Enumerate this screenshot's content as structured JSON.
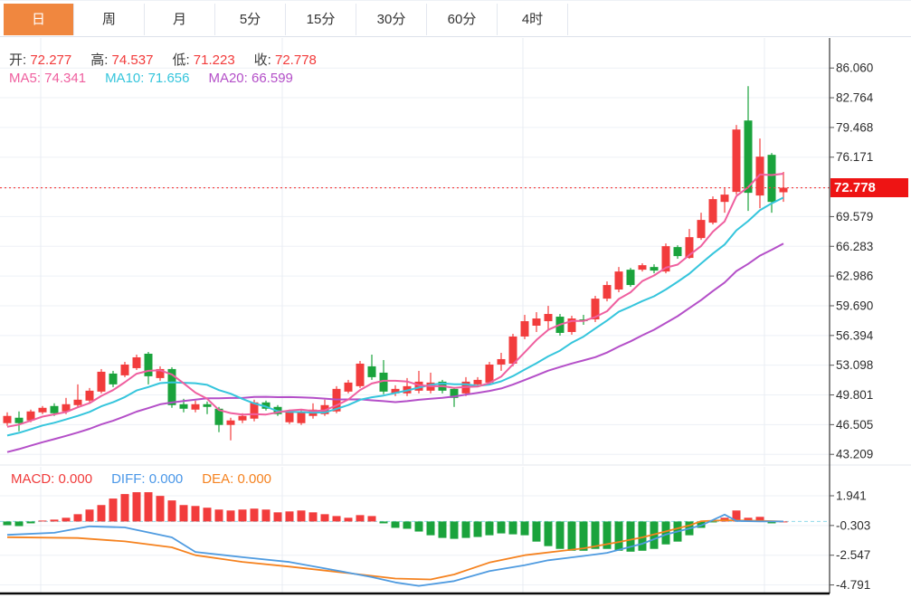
{
  "tabs": [
    {
      "label": "日",
      "active": true
    },
    {
      "label": "周",
      "active": false
    },
    {
      "label": "月",
      "active": false
    },
    {
      "label": "5分",
      "active": false
    },
    {
      "label": "15分",
      "active": false
    },
    {
      "label": "30分",
      "active": false
    },
    {
      "label": "60分",
      "active": false
    },
    {
      "label": "4时",
      "active": false
    }
  ],
  "legend": {
    "ohlc": [
      {
        "label": "开:",
        "value": "72.277"
      },
      {
        "label": "高:",
        "value": "74.537"
      },
      {
        "label": "低:",
        "value": "71.223"
      },
      {
        "label": "收:",
        "value": "72.778"
      }
    ],
    "ma": [
      {
        "label": "MA5:",
        "value": "74.341",
        "color": "#ef5f9f"
      },
      {
        "label": "MA10:",
        "value": "71.656",
        "color": "#35c5dc"
      },
      {
        "label": "MA20:",
        "value": "66.599",
        "color": "#b44fc8"
      }
    ],
    "macd": [
      {
        "label": "MACD:",
        "value": "0.000",
        "color": "#f03b3b"
      },
      {
        "label": "DIFF:",
        "value": "0.000",
        "color": "#4a97e8"
      },
      {
        "label": "DEA:",
        "value": "0.000",
        "color": "#f5821f"
      }
    ]
  },
  "price_axis": {
    "labels": [
      "86.060",
      "82.764",
      "79.468",
      "76.171",
      "72.778",
      "69.579",
      "66.283",
      "62.986",
      "59.690",
      "56.394",
      "53.098",
      "49.801",
      "46.505",
      "43.209"
    ],
    "values": [
      86.06,
      82.764,
      79.468,
      76.171,
      72.778,
      69.579,
      66.283,
      62.986,
      59.69,
      56.394,
      53.098,
      49.801,
      46.505,
      43.209
    ],
    "tag": "72.778"
  },
  "macd_axis": {
    "labels": [
      "1.941",
      "-0.303",
      "-2.547",
      "-4.791"
    ],
    "values": [
      1.941,
      -0.303,
      -2.547,
      -4.791
    ]
  },
  "chart_data": [
    {
      "type": "candlestick",
      "title": "",
      "up_color": "#f23c3c",
      "down_color": "#1aa33c",
      "ma_colors": {
        "ma5": "#ef5f9f",
        "ma10": "#35c5dc",
        "ma20": "#b44fc8"
      },
      "current_price": 72.778,
      "last_bar": {
        "open": 72.277,
        "high": 74.537,
        "low": 71.223,
        "close": 72.778
      },
      "ylim": [
        41.9,
        89.4
      ],
      "y_gridlines": [
        86.06,
        82.764,
        79.468,
        76.171,
        72.778,
        69.579,
        66.283,
        62.986,
        59.69,
        56.394,
        53.098,
        49.801,
        46.505,
        43.209
      ],
      "candles_ohlc": [
        [
          46.67,
          47.87,
          46.37,
          47.47
        ],
        [
          47.27,
          47.97,
          45.77,
          46.67
        ],
        [
          46.97,
          48.17,
          46.77,
          47.97
        ],
        [
          47.87,
          48.57,
          47.67,
          48.37
        ],
        [
          48.57,
          48.87,
          47.47,
          47.77
        ],
        [
          47.97,
          49.47,
          47.67,
          48.77
        ],
        [
          48.67,
          50.97,
          48.47,
          49.27
        ],
        [
          49.17,
          50.57,
          48.97,
          50.27
        ],
        [
          50.17,
          52.67,
          49.97,
          52.37
        ],
        [
          52.17,
          52.47,
          50.67,
          50.97
        ],
        [
          51.97,
          53.47,
          51.77,
          53.17
        ],
        [
          52.77,
          54.27,
          52.57,
          53.97
        ],
        [
          54.37,
          54.57,
          50.97,
          51.87
        ],
        [
          51.67,
          52.97,
          51.37,
          52.67
        ],
        [
          52.67,
          52.87,
          48.37,
          48.67
        ],
        [
          48.77,
          49.37,
          47.87,
          48.27
        ],
        [
          48.17,
          49.17,
          47.87,
          48.77
        ],
        [
          48.77,
          49.07,
          47.67,
          48.47
        ],
        [
          48.27,
          48.47,
          45.67,
          46.47
        ],
        [
          46.47,
          47.27,
          44.76,
          46.97
        ],
        [
          46.97,
          47.77,
          46.67,
          47.47
        ],
        [
          47.17,
          49.27,
          46.87,
          48.97
        ],
        [
          48.97,
          49.17,
          48.07,
          48.27
        ],
        [
          48.47,
          48.67,
          47.47,
          47.67
        ],
        [
          46.77,
          48.17,
          46.57,
          47.97
        ],
        [
          46.67,
          48.17,
          46.47,
          47.97
        ],
        [
          47.47,
          48.87,
          47.17,
          48.17
        ],
        [
          47.67,
          49.27,
          47.47,
          48.67
        ],
        [
          47.97,
          50.77,
          47.77,
          50.47
        ],
        [
          50.17,
          51.47,
          49.97,
          51.17
        ],
        [
          50.77,
          53.57,
          50.57,
          53.27
        ],
        [
          52.97,
          54.27,
          51.47,
          51.77
        ],
        [
          52.27,
          53.67,
          49.87,
          50.17
        ],
        [
          49.97,
          50.87,
          49.67,
          50.47
        ],
        [
          49.97,
          51.67,
          49.67,
          50.77
        ],
        [
          50.27,
          52.47,
          49.97,
          51.27
        ],
        [
          50.27,
          52.27,
          49.97,
          51.17
        ],
        [
          51.27,
          51.47,
          49.97,
          50.27
        ],
        [
          50.47,
          50.67,
          48.47,
          49.47
        ],
        [
          49.97,
          51.77,
          49.67,
          51.27
        ],
        [
          50.97,
          51.77,
          50.67,
          51.47
        ],
        [
          51.17,
          53.47,
          50.87,
          53.17
        ],
        [
          53.17,
          54.47,
          52.47,
          53.77
        ],
        [
          53.27,
          56.58,
          52.97,
          56.28
        ],
        [
          56.28,
          58.68,
          55.98,
          57.98
        ],
        [
          57.48,
          58.98,
          56.78,
          58.28
        ],
        [
          57.98,
          59.68,
          57.08,
          58.78
        ],
        [
          58.48,
          58.78,
          56.38,
          56.68
        ],
        [
          56.78,
          58.58,
          56.48,
          58.28
        ],
        [
          58.18,
          58.68,
          57.58,
          57.98
        ],
        [
          58.18,
          60.79,
          57.88,
          60.48
        ],
        [
          60.48,
          62.39,
          60.18,
          61.99
        ],
        [
          61.49,
          63.99,
          61.19,
          63.49
        ],
        [
          63.69,
          63.89,
          61.79,
          61.99
        ],
        [
          63.69,
          64.4,
          63.49,
          64.19
        ],
        [
          63.99,
          64.29,
          63.29,
          63.59
        ],
        [
          63.49,
          66.6,
          63.29,
          66.3
        ],
        [
          66.2,
          66.4,
          64.9,
          65.2
        ],
        [
          65.0,
          68.21,
          64.9,
          67.3
        ],
        [
          67.2,
          70.01,
          67.0,
          69.21
        ],
        [
          68.91,
          71.82,
          68.71,
          71.52
        ],
        [
          71.21,
          72.72,
          70.01,
          72.02
        ],
        [
          72.32,
          79.74,
          72.02,
          79.24
        ],
        [
          80.24,
          84.05,
          70.21,
          72.22
        ],
        [
          71.92,
          78.24,
          70.51,
          76.23
        ],
        [
          76.43,
          76.63,
          70.01,
          71.21
        ],
        [
          72.28,
          74.54,
          71.22,
          72.78
        ]
      ]
    },
    {
      "type": "bar",
      "title": "MACD",
      "pos_color": "#f23c3c",
      "neg_color": "#1aa33c",
      "diff_color": "#4f9be0",
      "dea_color": "#f5821f",
      "zero_line_color": "#8fd9ea",
      "ylim": [
        -5.3,
        2.5
      ],
      "y_gridlines": [
        1.941,
        -0.303,
        -2.547,
        -4.791
      ],
      "histogram": [
        -0.28,
        -0.35,
        -0.14,
        0.07,
        0.14,
        0.28,
        0.55,
        0.9,
        1.24,
        1.73,
        2.07,
        2.21,
        2.21,
        1.93,
        1.59,
        1.24,
        1.17,
        1.04,
        0.9,
        0.83,
        0.9,
        0.97,
        0.9,
        0.69,
        0.76,
        0.83,
        0.69,
        0.55,
        0.41,
        0.28,
        0.48,
        0.41,
        -0.14,
        -0.48,
        -0.55,
        -0.76,
        -1.04,
        -1.24,
        -1.31,
        -1.24,
        -1.17,
        -1.04,
        -0.9,
        -0.97,
        -1.04,
        -1.52,
        -1.86,
        -2.07,
        -2.21,
        -2.21,
        -2.07,
        -2.07,
        -2.21,
        -2.28,
        -2.21,
        -2.07,
        -1.73,
        -1.52,
        -1.04,
        -0.48,
        -0.07,
        0.28,
        0.83,
        0.28,
        0.35,
        -0.14,
        0.0
      ],
      "diff_points": [
        [
          0,
          -1.01
        ],
        [
          4,
          -0.85
        ],
        [
          7,
          -0.37
        ],
        [
          10,
          -0.45
        ],
        [
          14,
          -1.2
        ],
        [
          16,
          -2.3
        ],
        [
          20,
          -2.7
        ],
        [
          24,
          -3.06
        ],
        [
          28,
          -3.7
        ],
        [
          31,
          -4.2
        ],
        [
          33,
          -4.6
        ],
        [
          35,
          -4.86
        ],
        [
          38,
          -4.5
        ],
        [
          41,
          -3.75
        ],
        [
          44,
          -3.3
        ],
        [
          46,
          -2.93
        ],
        [
          49,
          -2.6
        ],
        [
          51,
          -2.37
        ],
        [
          54,
          -1.68
        ],
        [
          56,
          -0.99
        ],
        [
          59,
          -0.3
        ],
        [
          61,
          0.52
        ],
        [
          62,
          0.04
        ],
        [
          64,
          0.0
        ],
        [
          66,
          0.0
        ]
      ],
      "dea_points": [
        [
          0,
          -1.19
        ],
        [
          6,
          -1.25
        ],
        [
          10,
          -1.5
        ],
        [
          14,
          -1.95
        ],
        [
          16,
          -2.55
        ],
        [
          20,
          -3.05
        ],
        [
          24,
          -3.41
        ],
        [
          29,
          -3.9
        ],
        [
          33,
          -4.31
        ],
        [
          36,
          -4.38
        ],
        [
          38,
          -4.0
        ],
        [
          41,
          -3.1
        ],
        [
          44,
          -2.55
        ],
        [
          49,
          -2.03
        ],
        [
          52,
          -1.55
        ],
        [
          54,
          -1.2
        ],
        [
          58,
          -0.3
        ],
        [
          59,
          0.02
        ],
        [
          61,
          0.1
        ],
        [
          64,
          0.05
        ],
        [
          66,
          0.0
        ]
      ]
    }
  ],
  "colors": {
    "accent_tab": "#f0873f",
    "up": "#f23c3c",
    "down": "#1aa33c",
    "price_tag_bg": "#ee1414",
    "grid": "#edf0f6",
    "axis_line": "#444444"
  }
}
